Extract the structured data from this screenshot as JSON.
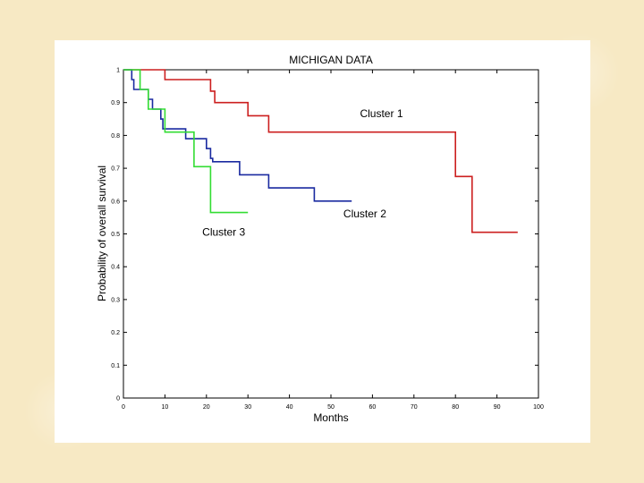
{
  "chart_data": {
    "type": "line",
    "subtype": "step",
    "title": "MICHIGAN DATA",
    "xlabel": "Months",
    "ylabel": "Probability of overall survival",
    "xlim": [
      0,
      100
    ],
    "ylim": [
      0,
      1
    ],
    "xticks": [
      0,
      10,
      20,
      30,
      40,
      50,
      60,
      70,
      80,
      90,
      100
    ],
    "yticks": [
      0,
      0.1,
      0.2,
      0.3,
      0.4,
      0.5,
      0.6,
      0.7,
      0.8,
      0.9,
      1
    ],
    "ytick_labels": [
      "0",
      "0.1",
      "0.2",
      "0.3",
      "0.4",
      "0.5",
      "0.6",
      "0.7",
      "0.8",
      "0.9",
      "1"
    ],
    "grid": false,
    "series": [
      {
        "name": "Cluster 1",
        "color": "#cc1f1f",
        "x": [
          0,
          10,
          20,
          21,
          22,
          30,
          35,
          80,
          84,
          95
        ],
        "y": [
          1.0,
          0.97,
          0.97,
          0.935,
          0.9,
          0.86,
          0.81,
          0.675,
          0.505,
          0.505
        ],
        "label_anchor": [
          57,
          0.855
        ]
      },
      {
        "name": "Cluster 2",
        "color": "#1a2aa0",
        "x": [
          0,
          2,
          2.5,
          6,
          7,
          9,
          9.5,
          10,
          15,
          20,
          21,
          21.5,
          28,
          35,
          46,
          55
        ],
        "y": [
          1.0,
          0.97,
          0.94,
          0.91,
          0.88,
          0.85,
          0.82,
          0.82,
          0.79,
          0.76,
          0.73,
          0.72,
          0.68,
          0.64,
          0.6,
          0.6
        ],
        "label_anchor": [
          53,
          0.55
        ]
      },
      {
        "name": "Cluster 3",
        "color": "#33dd33",
        "x": [
          0,
          4,
          6,
          9,
          10,
          17,
          21,
          30
        ],
        "y": [
          1.0,
          0.94,
          0.88,
          0.88,
          0.81,
          0.705,
          0.565,
          0.565
        ],
        "label_anchor": [
          19,
          0.495
        ]
      }
    ]
  }
}
